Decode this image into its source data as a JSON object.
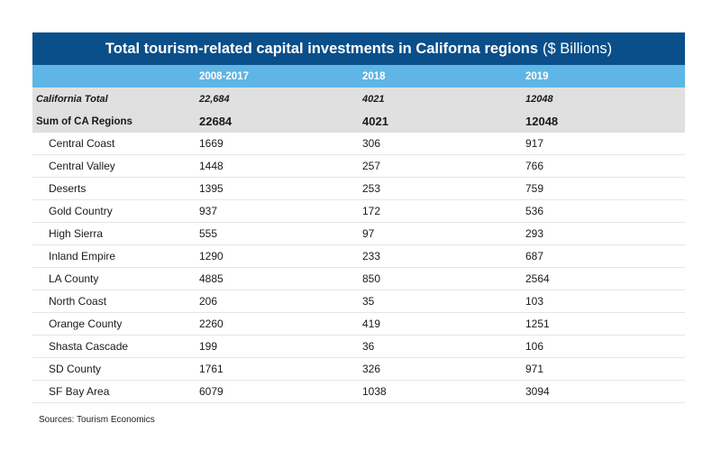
{
  "chart_data": {
    "type": "table",
    "title": "Total tourism-related capital investments in Californa regions",
    "title_unit": "($ Billions)",
    "columns": [
      "",
      "2008-2017",
      "2018",
      "2019"
    ],
    "total_row": {
      "label": "California Total",
      "values": [
        "22,684",
        "4021",
        "12048"
      ]
    },
    "sum_row": {
      "label": "Sum of CA Regions",
      "values": [
        "22684",
        "4021",
        "12048"
      ]
    },
    "rows": [
      {
        "label": "Central Coast",
        "values": [
          1669,
          306,
          917
        ]
      },
      {
        "label": "Central Valley",
        "values": [
          1448,
          257,
          766
        ]
      },
      {
        "label": "Deserts",
        "values": [
          1395,
          253,
          759
        ]
      },
      {
        "label": "Gold Country",
        "values": [
          937,
          172,
          536
        ]
      },
      {
        "label": "High Sierra",
        "values": [
          555,
          97,
          293
        ]
      },
      {
        "label": "Inland Empire",
        "values": [
          1290,
          233,
          687
        ]
      },
      {
        "label": "LA County",
        "values": [
          4885,
          850,
          2564
        ]
      },
      {
        "label": "North Coast",
        "values": [
          206,
          35,
          103
        ]
      },
      {
        "label": "Orange County",
        "values": [
          2260,
          419,
          1251
        ]
      },
      {
        "label": "Shasta Cascade",
        "values": [
          199,
          36,
          106
        ]
      },
      {
        "label": "SD County",
        "values": [
          1761,
          326,
          971
        ]
      },
      {
        "label": "SF Bay Area",
        "values": [
          6079,
          1038,
          3094
        ]
      }
    ],
    "source": "Sources: Tourism Economics"
  },
  "colors": {
    "title_bg": "#0a4f8a",
    "header_bg": "#5fb5e6",
    "total_bg": "#e0e0e0"
  }
}
